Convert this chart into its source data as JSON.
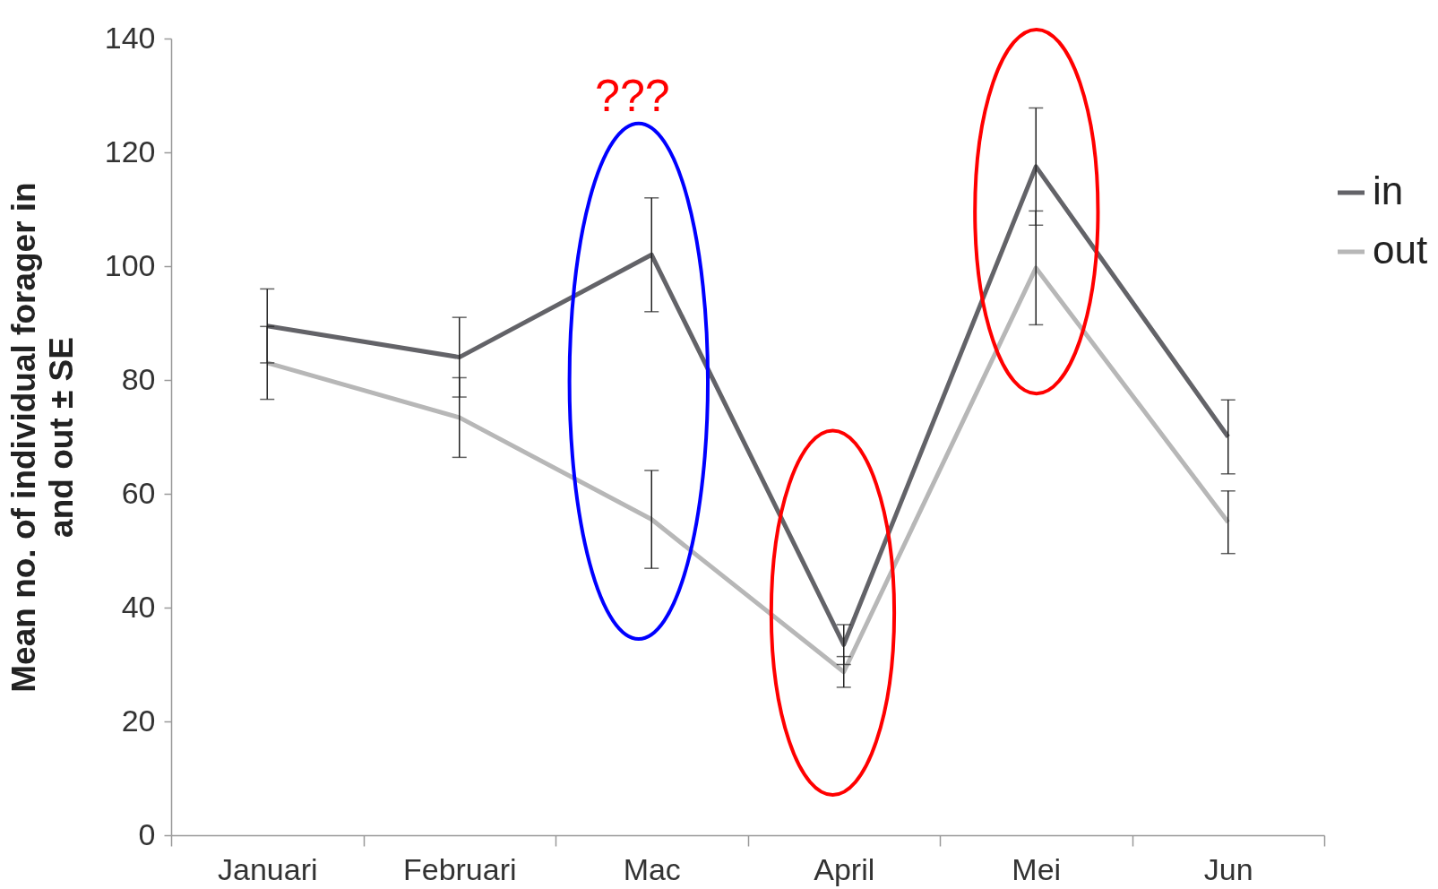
{
  "chart_data": {
    "type": "line",
    "ylabel": "Mean no. of individual forager in and out ± SE",
    "categories": [
      "Januari",
      "Februari",
      "Mac",
      "April",
      "Mei",
      "Jun"
    ],
    "series": [
      {
        "name": "in",
        "color": "#636368",
        "values": [
          89.5,
          84,
          102,
          33.5,
          117.5,
          70
        ],
        "errors": [
          6.5,
          7,
          10,
          3.5,
          10.3,
          6.5
        ]
      },
      {
        "name": "out",
        "color": "#b7b7b7",
        "values": [
          83,
          73.4,
          55.5,
          28.7,
          99.7,
          55
        ],
        "errors": [
          6.4,
          7,
          8.6,
          2.7,
          10,
          5.5
        ]
      }
    ],
    "ylim": [
      0,
      140
    ],
    "yticks": [
      0,
      20,
      40,
      60,
      80,
      100,
      120,
      140
    ],
    "grid": false,
    "legend": "right",
    "marker": "none",
    "line_style": "solid",
    "annotations": [
      "???"
    ]
  }
}
